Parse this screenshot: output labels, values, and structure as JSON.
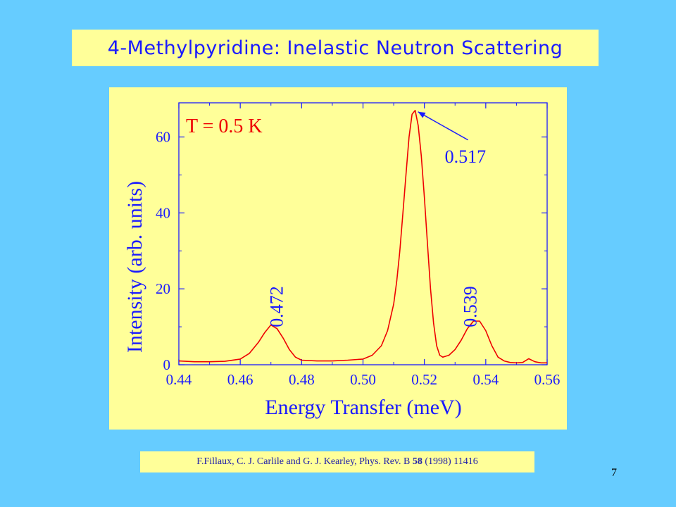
{
  "slide": {
    "title": "4-Methylpyridine: Inelastic Neutron Scattering",
    "page_number": "7",
    "citation": {
      "prefix": "F.Fillaux, C. J. Carlile and G. J. Kearley, Phys. Rev. B ",
      "volume": "58",
      "suffix": " (1998) 11416"
    }
  },
  "colors": {
    "background": "#66ccff",
    "panel": "#ffff99",
    "text_blue": "#1a1aff",
    "trace_red": "#ee0000"
  },
  "chart_data": {
    "type": "line",
    "xlabel": "Energy Transfer (meV)",
    "ylabel": "Intensity (arb. units)",
    "xlim": [
      0.44,
      0.56
    ],
    "ylim": [
      0,
      69
    ],
    "xticks": [
      0.44,
      0.46,
      0.48,
      0.5,
      0.52,
      0.54,
      0.56
    ],
    "xtick_labels": [
      "0.44",
      "0.46",
      "0.48",
      "0.50",
      "0.52",
      "0.54",
      "0.56"
    ],
    "yticks": [
      0,
      20,
      40,
      60
    ],
    "ytick_labels": [
      "0",
      "20",
      "40",
      "60"
    ],
    "grid": false,
    "series": [
      {
        "color": "#ee0000",
        "x": [
          0.44,
          0.445,
          0.45,
          0.455,
          0.46,
          0.463,
          0.466,
          0.468,
          0.47,
          0.472,
          0.474,
          0.476,
          0.478,
          0.48,
          0.485,
          0.49,
          0.495,
          0.5,
          0.503,
          0.506,
          0.508,
          0.51,
          0.511,
          0.512,
          0.513,
          0.514,
          0.515,
          0.516,
          0.517,
          0.518,
          0.519,
          0.52,
          0.521,
          0.522,
          0.523,
          0.524,
          0.525,
          0.526,
          0.528,
          0.53,
          0.532,
          0.534,
          0.536,
          0.538,
          0.54,
          0.542,
          0.544,
          0.546,
          0.548,
          0.55,
          0.552,
          0.554,
          0.556,
          0.558,
          0.56
        ],
        "y": [
          1.0,
          0.8,
          0.8,
          0.9,
          1.5,
          3.0,
          6.0,
          8.5,
          10.5,
          9.5,
          7.0,
          4.0,
          2.0,
          1.2,
          1.0,
          1.0,
          1.2,
          1.5,
          2.5,
          5.0,
          9.0,
          16.0,
          22.0,
          30.0,
          40.0,
          50.0,
          60.0,
          66.0,
          67.0,
          63.0,
          55.0,
          44.0,
          32.0,
          20.0,
          11.0,
          5.0,
          2.5,
          2.0,
          2.5,
          4.0,
          6.5,
          9.5,
          11.5,
          11.5,
          9.0,
          5.0,
          2.0,
          1.0,
          0.6,
          0.5,
          0.6,
          1.6,
          0.8,
          0.5,
          0.5
        ]
      }
    ],
    "annotations": [
      {
        "text": "T = 0.5 K",
        "color": "#ee0000"
      },
      {
        "text": "0.517",
        "arrow_to": [
          0.517,
          67.0
        ]
      },
      {
        "text": "0.472",
        "orientation": "vertical",
        "near_x": 0.472
      },
      {
        "text": "0.539",
        "orientation": "vertical",
        "near_x": 0.539
      }
    ]
  }
}
